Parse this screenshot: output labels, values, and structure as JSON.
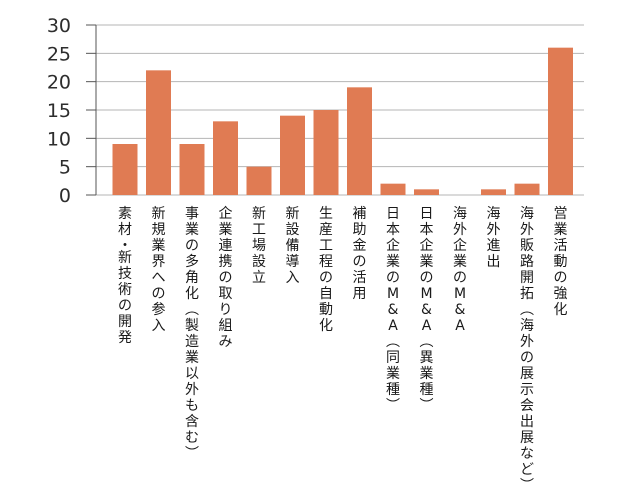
{
  "chart_data": {
    "type": "bar",
    "title": "",
    "xlabel": "",
    "ylabel": "",
    "ylim": [
      0,
      30
    ],
    "yticks": [
      0,
      5,
      10,
      15,
      20,
      25,
      30
    ],
    "grid": true,
    "legend": "none",
    "bar_color": "#e07b53",
    "categories": [
      "素材・新技術の開発",
      "新規業界への参入",
      "事業の多角化(製造業以外も含む)",
      "企業連携の取り組み",
      "新工場設立",
      "新設備導入",
      "生産工程の自動化",
      "補助金の活用",
      "日本企業のM&A(同業種)",
      "日本企業のM&A(異業種)",
      "海外企業のM&A",
      "海外進出",
      "海外販路開拓(海外の展示会出展など)",
      "営業活動の強化"
    ],
    "values": [
      9,
      22,
      9,
      13,
      5,
      14,
      15,
      19,
      2,
      1,
      0,
      1,
      2,
      26
    ]
  }
}
